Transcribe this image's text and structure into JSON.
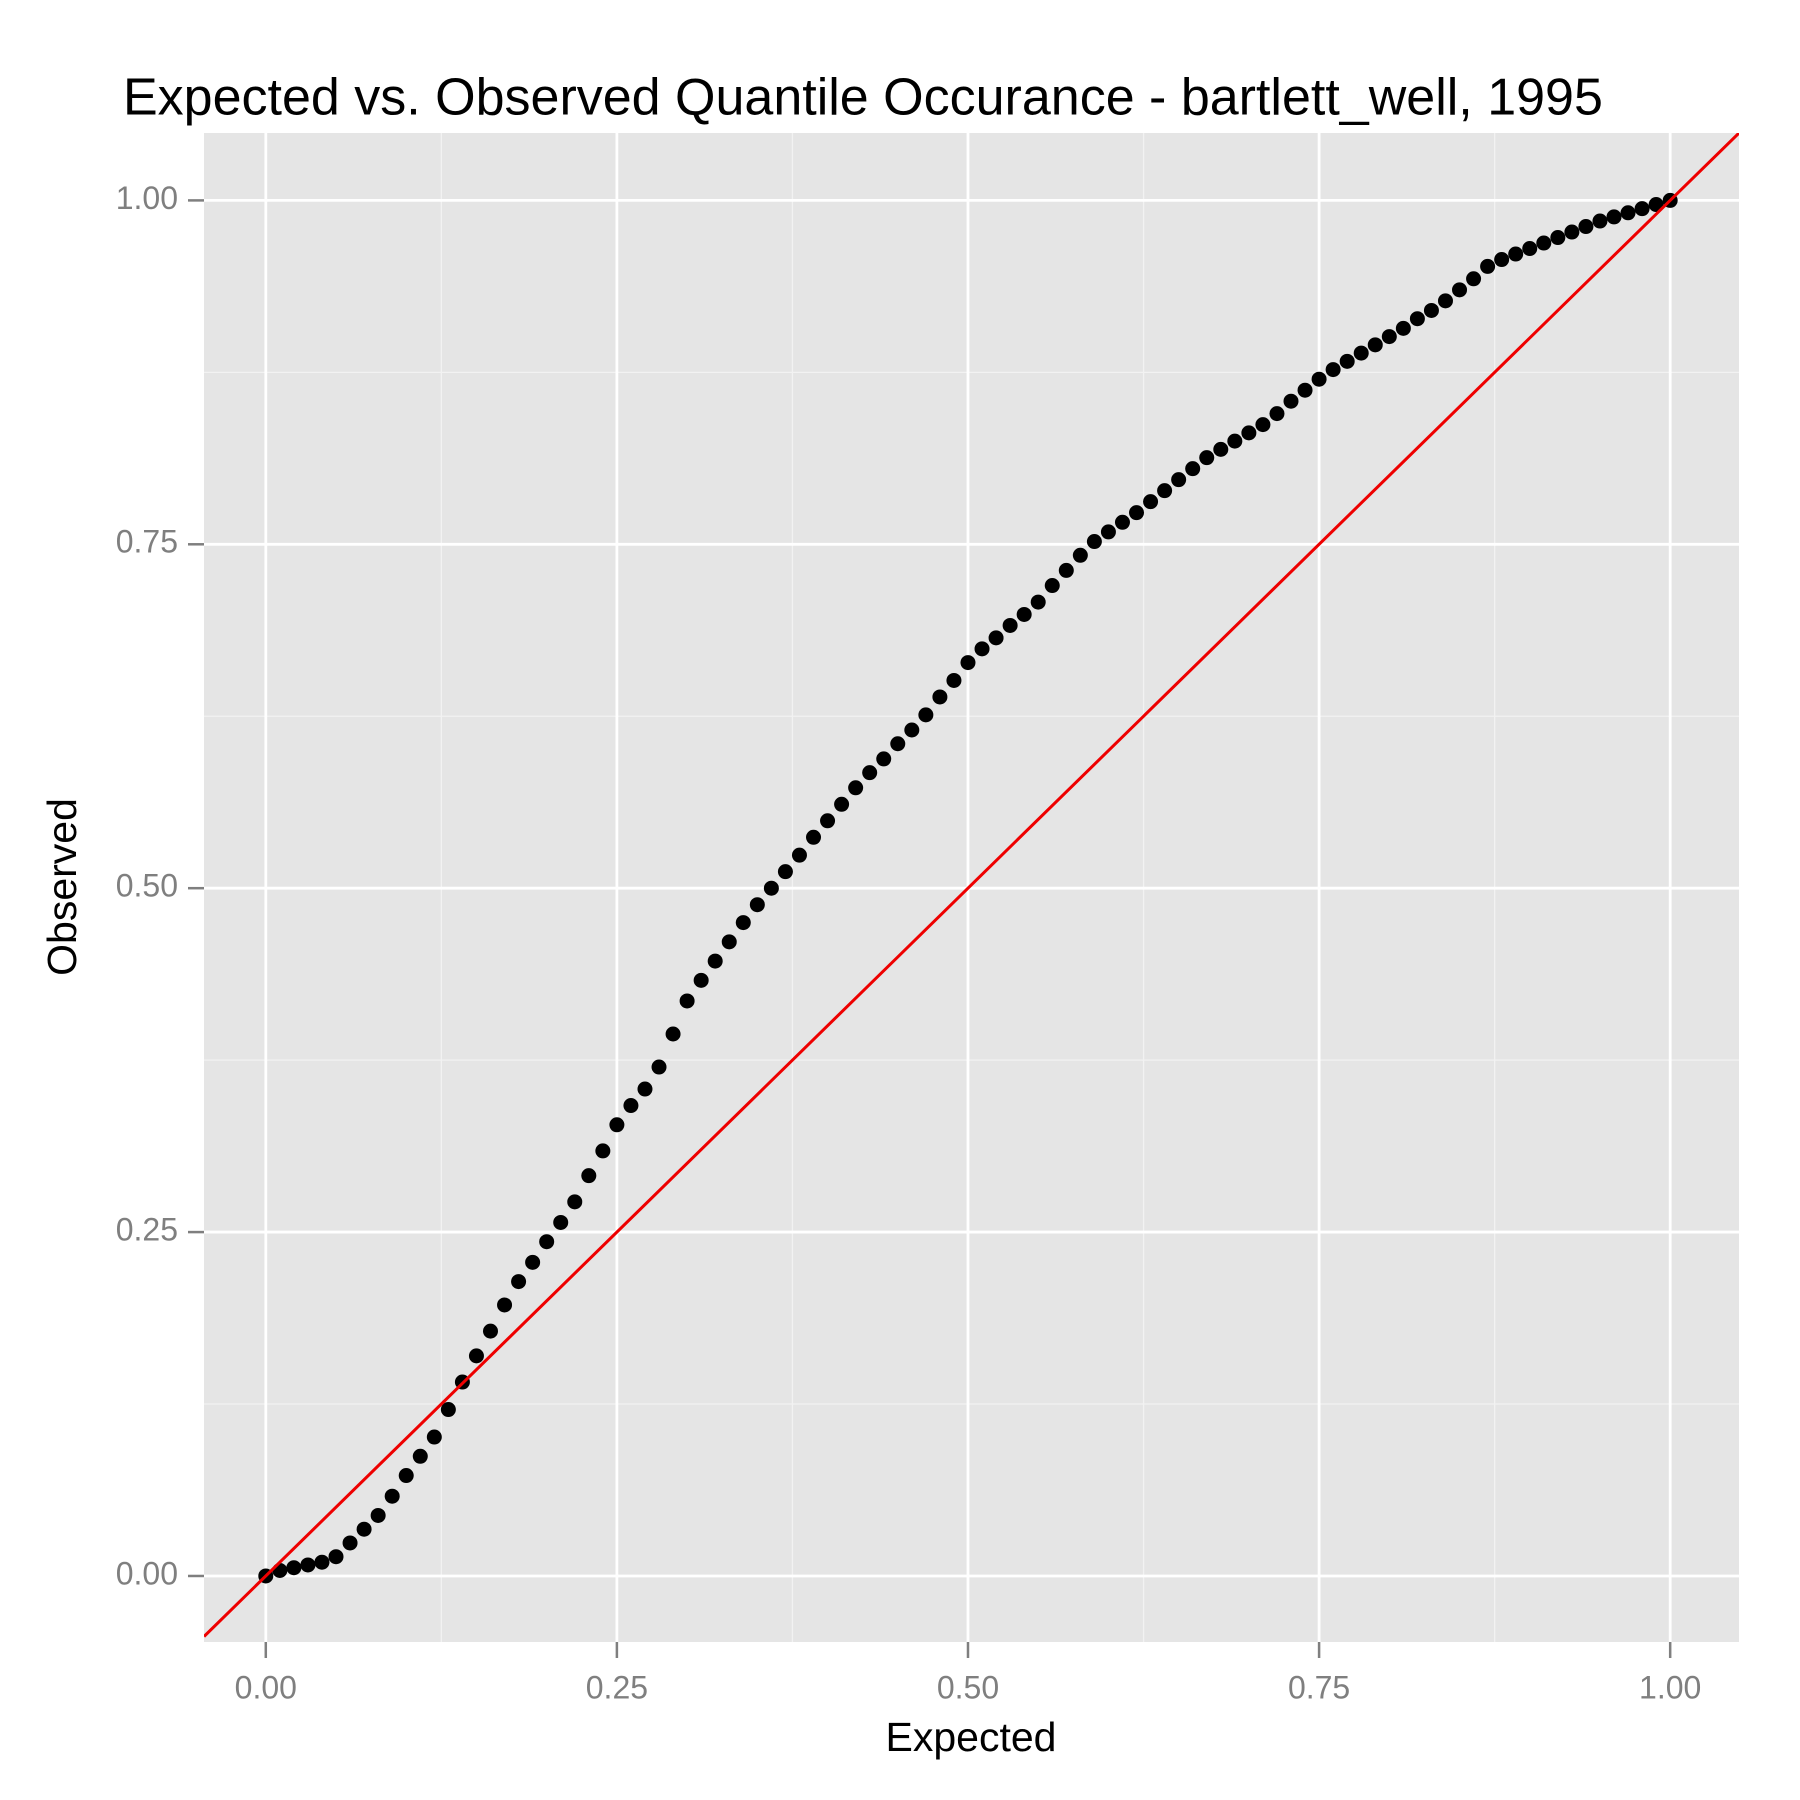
{
  "chart_data": {
    "type": "scatter",
    "title": "Expected vs. Observed Quantile Occurance - bartlett_well, 1995",
    "x_label": "Expected",
    "y_label": "Observed",
    "color": "#000000",
    "background": "#e5e5e5",
    "grid": true,
    "minor_grid": true,
    "reference_line": {
      "slope": 1,
      "intercept": 0,
      "color": "#ee0000"
    },
    "xlim": [
      -0.044,
      1.049
    ],
    "ylim": [
      -0.048,
      1.049
    ],
    "xticks": [
      {
        "value": 0,
        "label": "0.00"
      },
      {
        "value": 0.25,
        "label": "0.25"
      },
      {
        "value": 0.5,
        "label": "0.50"
      },
      {
        "value": 0.75,
        "label": "0.75"
      },
      {
        "value": 1,
        "label": "1.00"
      }
    ],
    "yticks": [
      {
        "value": 0,
        "label": "0.00"
      },
      {
        "value": 0.25,
        "label": "0.25"
      },
      {
        "value": 0.5,
        "label": "0.50"
      },
      {
        "value": 0.75,
        "label": "0.75"
      },
      {
        "value": 1,
        "label": "1.00"
      }
    ],
    "x": [
      0.0,
      0.01,
      0.02,
      0.03,
      0.04,
      0.05,
      0.06,
      0.07,
      0.08,
      0.09,
      0.1,
      0.11,
      0.12,
      0.13,
      0.14,
      0.15,
      0.16,
      0.17,
      0.18,
      0.19,
      0.2,
      0.21,
      0.22,
      0.23,
      0.24,
      0.25,
      0.26,
      0.27,
      0.28,
      0.29,
      0.3,
      0.31,
      0.32,
      0.33,
      0.34,
      0.35,
      0.36,
      0.37,
      0.38,
      0.39,
      0.4,
      0.41,
      0.42,
      0.43,
      0.44,
      0.45,
      0.46,
      0.47,
      0.48,
      0.49,
      0.5,
      0.51,
      0.52,
      0.53,
      0.54,
      0.55,
      0.56,
      0.57,
      0.58,
      0.59,
      0.6,
      0.61,
      0.62,
      0.63,
      0.64,
      0.65,
      0.66,
      0.67,
      0.68,
      0.69,
      0.7,
      0.71,
      0.72,
      0.73,
      0.74,
      0.75,
      0.76,
      0.77,
      0.78,
      0.79,
      0.8,
      0.81,
      0.82,
      0.83,
      0.84,
      0.85,
      0.86,
      0.87,
      0.88,
      0.89,
      0.9,
      0.91,
      0.92,
      0.93,
      0.94,
      0.95,
      0.96,
      0.97,
      0.98,
      0.99,
      1.0
    ],
    "values": [
      0.0,
      0.004,
      0.006,
      0.008,
      0.01,
      0.014,
      0.024,
      0.034,
      0.044,
      0.058,
      0.073,
      0.087,
      0.101,
      0.121,
      0.141,
      0.16,
      0.178,
      0.197,
      0.214,
      0.228,
      0.243,
      0.257,
      0.272,
      0.291,
      0.309,
      0.328,
      0.342,
      0.354,
      0.37,
      0.394,
      0.418,
      0.433,
      0.447,
      0.461,
      0.475,
      0.488,
      0.5,
      0.512,
      0.524,
      0.537,
      0.549,
      0.561,
      0.573,
      0.584,
      0.594,
      0.605,
      0.615,
      0.626,
      0.639,
      0.651,
      0.664,
      0.674,
      0.682,
      0.691,
      0.699,
      0.708,
      0.72,
      0.731,
      0.742,
      0.752,
      0.759,
      0.766,
      0.773,
      0.781,
      0.789,
      0.797,
      0.805,
      0.813,
      0.819,
      0.825,
      0.831,
      0.837,
      0.845,
      0.854,
      0.862,
      0.87,
      0.877,
      0.883,
      0.889,
      0.895,
      0.901,
      0.907,
      0.914,
      0.92,
      0.927,
      0.935,
      0.943,
      0.952,
      0.957,
      0.961,
      0.965,
      0.969,
      0.973,
      0.977,
      0.981,
      0.985,
      0.988,
      0.991,
      0.994,
      0.997,
      1.0
    ]
  }
}
